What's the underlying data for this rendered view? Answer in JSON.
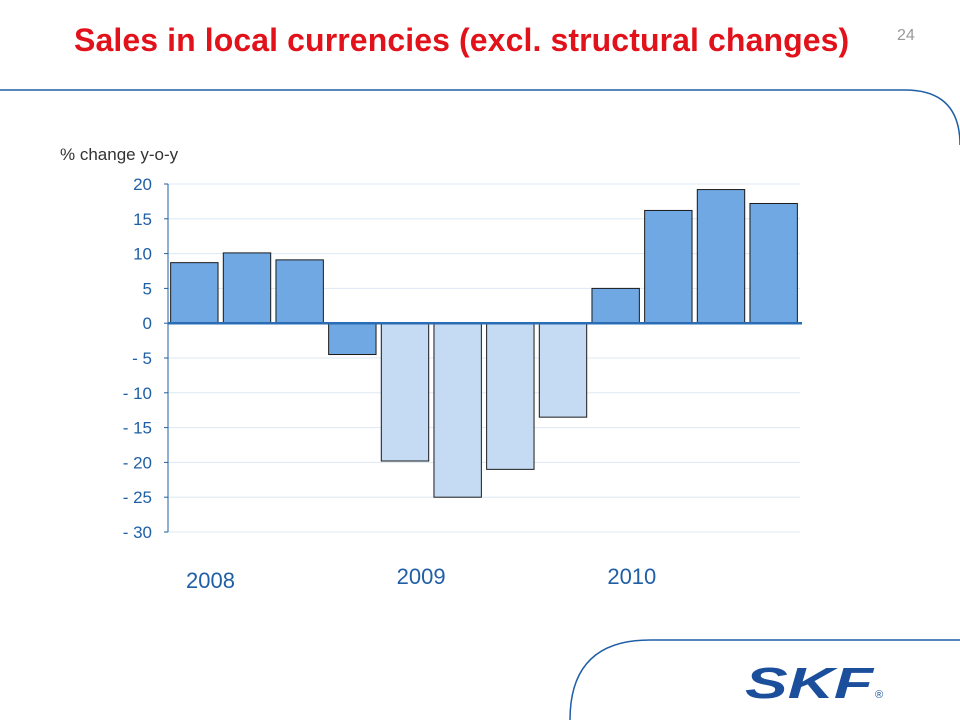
{
  "slide": {
    "title": "Sales in local currencies (excl. structural changes)",
    "page_number": "24"
  },
  "chart_data": {
    "type": "bar",
    "title": "",
    "ylabel": "% change y-o-y",
    "xlabel": "",
    "ylim": [
      -30,
      20
    ],
    "yticks": [
      20,
      15,
      10,
      5,
      0,
      -5,
      -10,
      -15,
      -20,
      -25,
      -30
    ],
    "ytick_labels": [
      "20",
      "15",
      "10",
      "5",
      "0",
      "- 5",
      "- 10",
      "- 15",
      "- 20",
      "- 25",
      "- 30"
    ],
    "grid": true,
    "values": [
      8.7,
      10.1,
      9.1,
      -4.5,
      -19.8,
      -25.0,
      -21.0,
      -13.5,
      5.0,
      16.2,
      19.2,
      17.2
    ],
    "year_labels": [
      {
        "label": "2008",
        "bar_index": 0
      },
      {
        "label": "2009",
        "bar_index": 4
      },
      {
        "label": "2010",
        "bar_index": 8
      }
    ],
    "colors": {
      "bar_dark": "#6fa8e3",
      "bar_light": "#c5dbf3",
      "bar_stroke": "#1a1a1a",
      "zero_line": "#2a6db5",
      "grid": "#dde8f4",
      "tick_text": "#1f5fa6",
      "year_text": "#1f5fa6"
    },
    "light_bar_indices": [
      4,
      5,
      6,
      7
    ]
  },
  "brand": {
    "logo_text": "SKF",
    "registered_mark": "®",
    "accent_color": "#1b4f9c",
    "deco_line_color": "#1f5fa6",
    "title_color": "#e2121b"
  }
}
